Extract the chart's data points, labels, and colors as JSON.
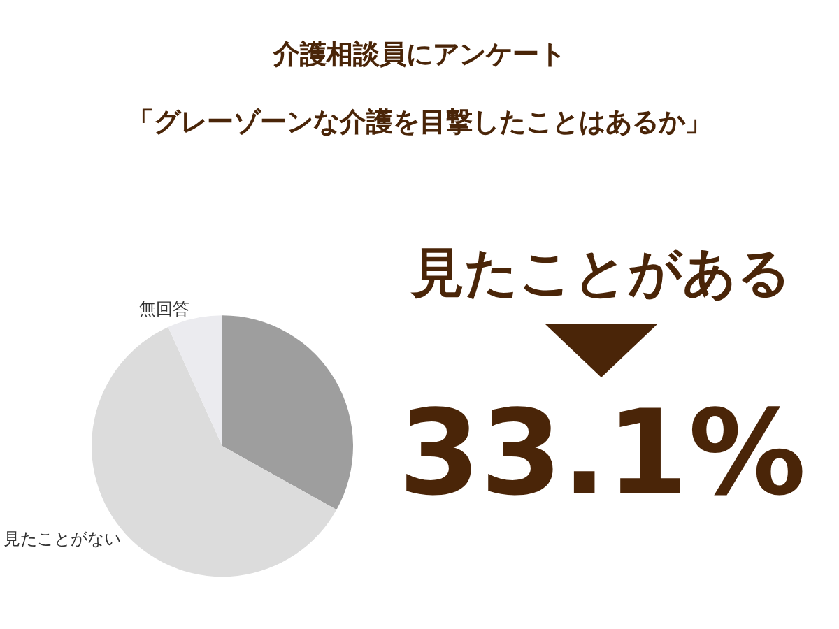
{
  "chart_data": {
    "type": "pie",
    "title": "介護相談員にアンケート",
    "subtitle": "「グレーゾーンな介護を目撃したことはあるか」",
    "categories": [
      "見たことがある",
      "見たことがない",
      "無回答"
    ],
    "values": [
      33.1,
      60.1,
      6.8
    ],
    "colors": [
      "#9e9e9e",
      "#dcdcdc",
      "#ebebef"
    ],
    "value_labels": [
      "33.1%",
      null,
      null
    ]
  }
}
